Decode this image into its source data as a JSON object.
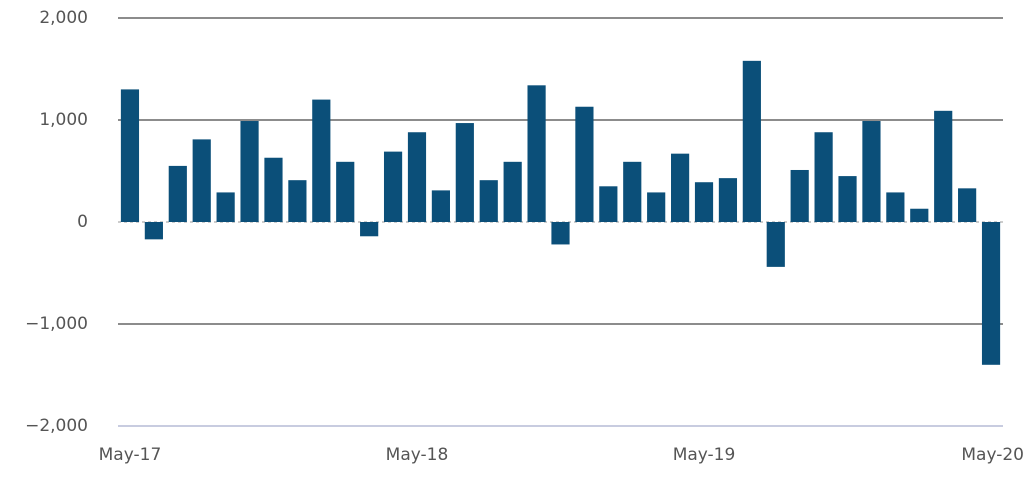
{
  "chart_data": {
    "type": "bar",
    "categories": [
      "May-17",
      null,
      null,
      null,
      null,
      null,
      null,
      null,
      null,
      null,
      null,
      null,
      "May-18",
      null,
      null,
      null,
      null,
      null,
      null,
      null,
      null,
      null,
      null,
      null,
      "May-19",
      null,
      null,
      null,
      null,
      null,
      null,
      null,
      null,
      null,
      null,
      null,
      "May-20"
    ],
    "values": [
      1300,
      -170,
      550,
      810,
      290,
      990,
      630,
      410,
      1200,
      590,
      -140,
      690,
      880,
      310,
      970,
      410,
      590,
      1340,
      -220,
      1130,
      350,
      590,
      290,
      670,
      390,
      430,
      1580,
      -440,
      510,
      880,
      450,
      990,
      290,
      130,
      1090,
      330,
      -1400
    ],
    "color": "#0b4f79",
    "ylim": [
      -2000,
      2000
    ],
    "yticks": [
      {
        "value": -2000,
        "label": "−2,000"
      },
      {
        "value": -1000,
        "label": "−1,000"
      },
      0,
      {
        "value": 1000,
        "label": "1,000"
      },
      {
        "value": 2000,
        "label": "2,000"
      }
    ],
    "grid": true
  }
}
